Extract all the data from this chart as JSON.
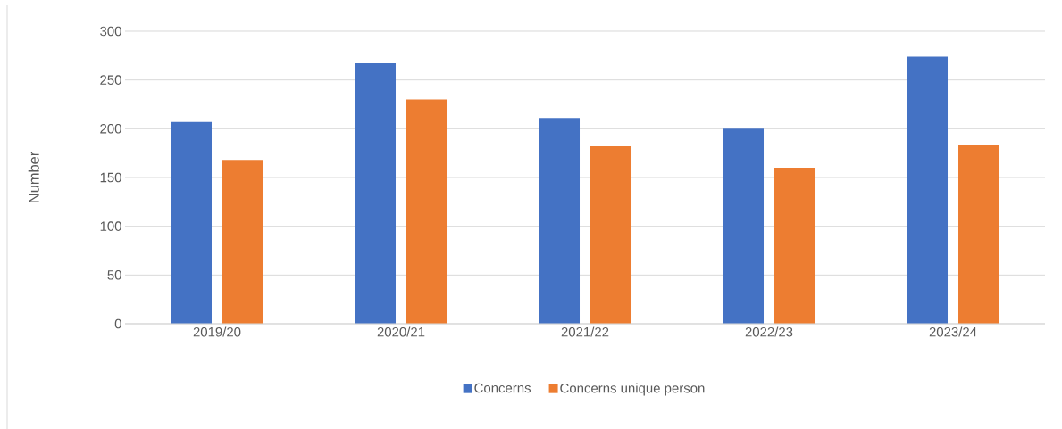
{
  "chart_data": {
    "type": "bar",
    "ylabel": "Number",
    "categories": [
      "2019/20",
      "2020/21",
      "2021/22",
      "2022/23",
      "2023/24"
    ],
    "series": [
      {
        "name": "Concerns",
        "color": "#4472c4",
        "values": [
          207,
          267,
          211,
          200,
          274
        ]
      },
      {
        "name": "Concerns unique person",
        "color": "#ed7d31",
        "values": [
          168,
          230,
          182,
          160,
          183
        ]
      }
    ],
    "ylim": [
      0,
      300
    ],
    "yticks": [
      0,
      50,
      100,
      150,
      200,
      250,
      300
    ],
    "grid": "y",
    "legend": "bottom"
  }
}
